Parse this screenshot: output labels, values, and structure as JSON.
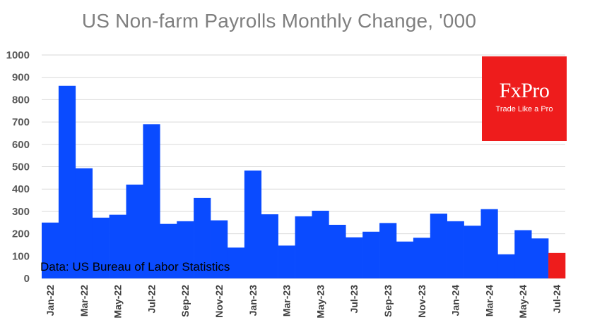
{
  "title": "US Non-farm Payrolls Monthly Change, '000",
  "source_note": "Data: US Bureau of Labor Statistics",
  "logo": {
    "name": "FxPro",
    "tagline": "Trade Like a Pro"
  },
  "colors": {
    "bar": "#0a4bff",
    "last_bar": "#ee1c1c",
    "grid": "#d9d9d9",
    "logo_bg": "#ee1c1c"
  },
  "chart_data": {
    "type": "bar",
    "title": "US Non-farm Payrolls Monthly Change, '000",
    "xlabel": "",
    "ylabel": "",
    "ylim": [
      0,
      1000
    ],
    "yticks": [
      0,
      100,
      200,
      300,
      400,
      500,
      600,
      700,
      800,
      900,
      1000
    ],
    "grid": true,
    "categories": [
      "Jan-22",
      "Feb-22",
      "Mar-22",
      "Apr-22",
      "May-22",
      "Jun-22",
      "Jul-22",
      "Aug-22",
      "Sep-22",
      "Oct-22",
      "Nov-22",
      "Dec-22",
      "Jan-23",
      "Feb-23",
      "Mar-23",
      "Apr-23",
      "May-23",
      "Jun-23",
      "Jul-23",
      "Aug-23",
      "Sep-23",
      "Oct-23",
      "Nov-23",
      "Dec-23",
      "Jan-24",
      "Feb-24",
      "Mar-24",
      "Apr-24",
      "May-24",
      "Jun-24",
      "Jul-24"
    ],
    "tick_labels": [
      "Jan-22",
      "Mar-22",
      "May-22",
      "Jul-22",
      "Sep-22",
      "Nov-22",
      "Jan-23",
      "Mar-23",
      "May-23",
      "Jul-23",
      "Sep-23",
      "Nov-23",
      "Jan-24",
      "Mar-24",
      "May-24",
      "Jul-24"
    ],
    "values": [
      250,
      862,
      493,
      272,
      285,
      420,
      690,
      244,
      256,
      360,
      260,
      138,
      483,
      287,
      147,
      278,
      303,
      240,
      184,
      209,
      248,
      165,
      182,
      290,
      256,
      236,
      310,
      108,
      216,
      179,
      114
    ],
    "highlight_last": true
  }
}
